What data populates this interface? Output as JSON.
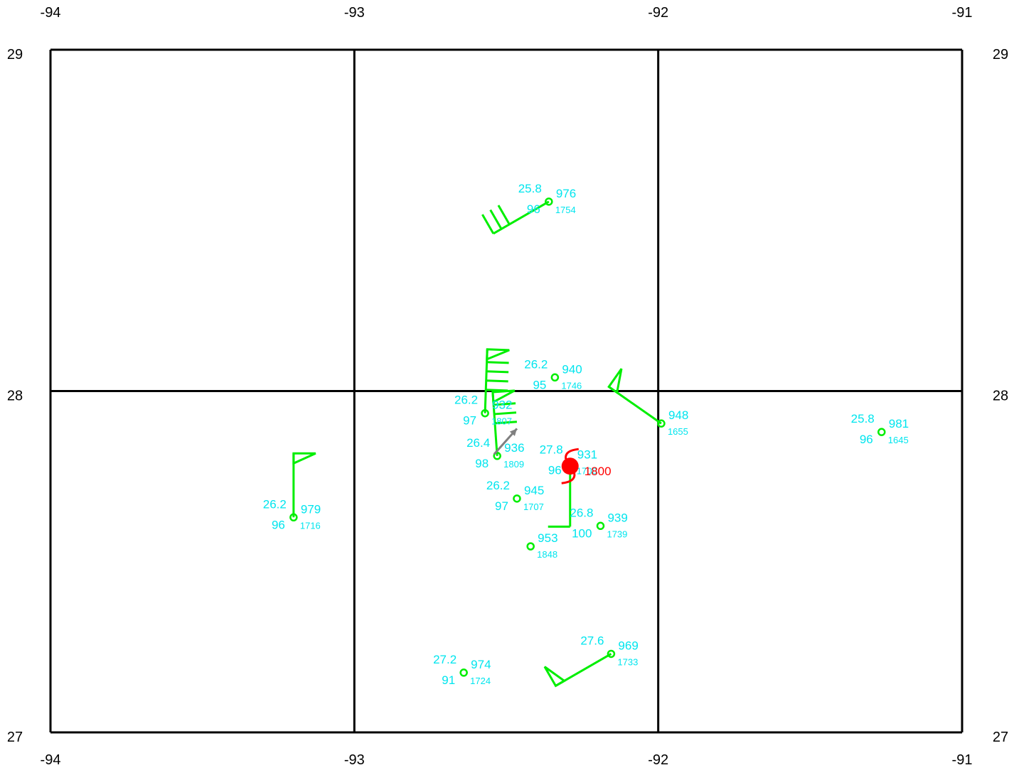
{
  "map": {
    "lon_range": [
      -94,
      -91
    ],
    "lat_range": [
      27,
      29
    ],
    "grid_lons": [
      -94,
      -93,
      -92,
      -91
    ],
    "grid_lats": [
      27,
      28,
      29
    ],
    "lon_labels_top": [
      "-94",
      "-93",
      "-92",
      "-91"
    ],
    "lon_labels_bottom": [
      "-94",
      "-93",
      "-92",
      "-91"
    ],
    "lat_labels_left": [
      "27",
      "28",
      "29"
    ],
    "lat_labels_right": [
      "27",
      "28",
      "29"
    ],
    "colors": {
      "grid": "#000000",
      "station": "#00ee00",
      "text": "#00e5ee",
      "storm": "#ff0000",
      "motion_arrow": "#808080"
    }
  },
  "observations": [
    {
      "id": "obs-1754",
      "lon": -92.36,
      "lat": 28.555,
      "temp": "25.8",
      "rh": "96",
      "pressure": "976",
      "time": "1754",
      "barb": {
        "dir": 240,
        "flags": 0,
        "full": 3,
        "half": 0
      }
    },
    {
      "id": "obs-1746",
      "lon": -92.34,
      "lat": 28.04,
      "temp": "26.2",
      "rh": "95",
      "pressure": "940",
      "time": "1746"
    },
    {
      "id": "obs-1807",
      "lon": -92.57,
      "lat": 27.935,
      "temp": "26.2",
      "rh": "97",
      "pressure": "932",
      "time": "1807",
      "barb": {
        "dir": 2,
        "flags": 1,
        "full": 4,
        "half": 0
      }
    },
    {
      "id": "obs-1809",
      "lon": -92.53,
      "lat": 27.81,
      "temp": "26.4",
      "rh": "98",
      "pressure": "936",
      "time": "1809",
      "barb": {
        "dir": 356,
        "flags": 1,
        "full": 3,
        "half": 0
      }
    },
    {
      "id": "obs-1700",
      "lon": -92.29,
      "lat": 27.79,
      "temp": "27.8",
      "rh": "96",
      "pressure": "931",
      "time": "1700",
      "barb": {
        "dir": 180,
        "flags": 0,
        "full": 1,
        "half": 0
      }
    },
    {
      "id": "obs-1707",
      "lon": -92.465,
      "lat": 27.685,
      "temp": "26.2",
      "rh": "97",
      "pressure": "945",
      "time": "1707"
    },
    {
      "id": "obs-1739",
      "lon": -92.19,
      "lat": 27.605,
      "temp": "26.8",
      "rh": "100",
      "pressure": "939",
      "time": "1739"
    },
    {
      "id": "obs-1848",
      "lon": -92.42,
      "lat": 27.545,
      "temp": "",
      "rh": "",
      "pressure": "953",
      "time": "1848"
    },
    {
      "id": "obs-1655",
      "lon": -91.99,
      "lat": 27.905,
      "temp": "",
      "rh": "",
      "pressure": "948",
      "time": "1655",
      "barb": {
        "dir": 305,
        "flags": 1,
        "full": 0,
        "half": 0
      }
    },
    {
      "id": "obs-1645",
      "lon": -91.265,
      "lat": 27.88,
      "temp": "25.8",
      "rh": "96",
      "pressure": "981",
      "time": "1645"
    },
    {
      "id": "obs-1716",
      "lon": -93.2,
      "lat": 27.63,
      "temp": "26.2",
      "rh": "96",
      "pressure": "979",
      "time": "1716",
      "barb": {
        "dir": 360,
        "flags": 1,
        "full": 0,
        "half": 0
      }
    },
    {
      "id": "obs-1733",
      "lon": -92.155,
      "lat": 27.23,
      "temp": "27.6",
      "rh": "",
      "pressure": "969",
      "time": "1733",
      "barb": {
        "dir": 240,
        "flags": 1,
        "full": 0,
        "half": 0
      }
    },
    {
      "id": "obs-1724",
      "lon": -92.64,
      "lat": 27.175,
      "temp": "27.2",
      "rh": "91",
      "pressure": "974",
      "time": "1724"
    }
  ],
  "storm": {
    "lon": -92.29,
    "lat": 27.78,
    "time": "1800",
    "symbol": "hurricane-symbol"
  },
  "motion_vector": {
    "from": {
      "lon": -92.54,
      "lat": 27.815
    },
    "to": {
      "lon": -92.465,
      "lat": 27.89
    }
  }
}
